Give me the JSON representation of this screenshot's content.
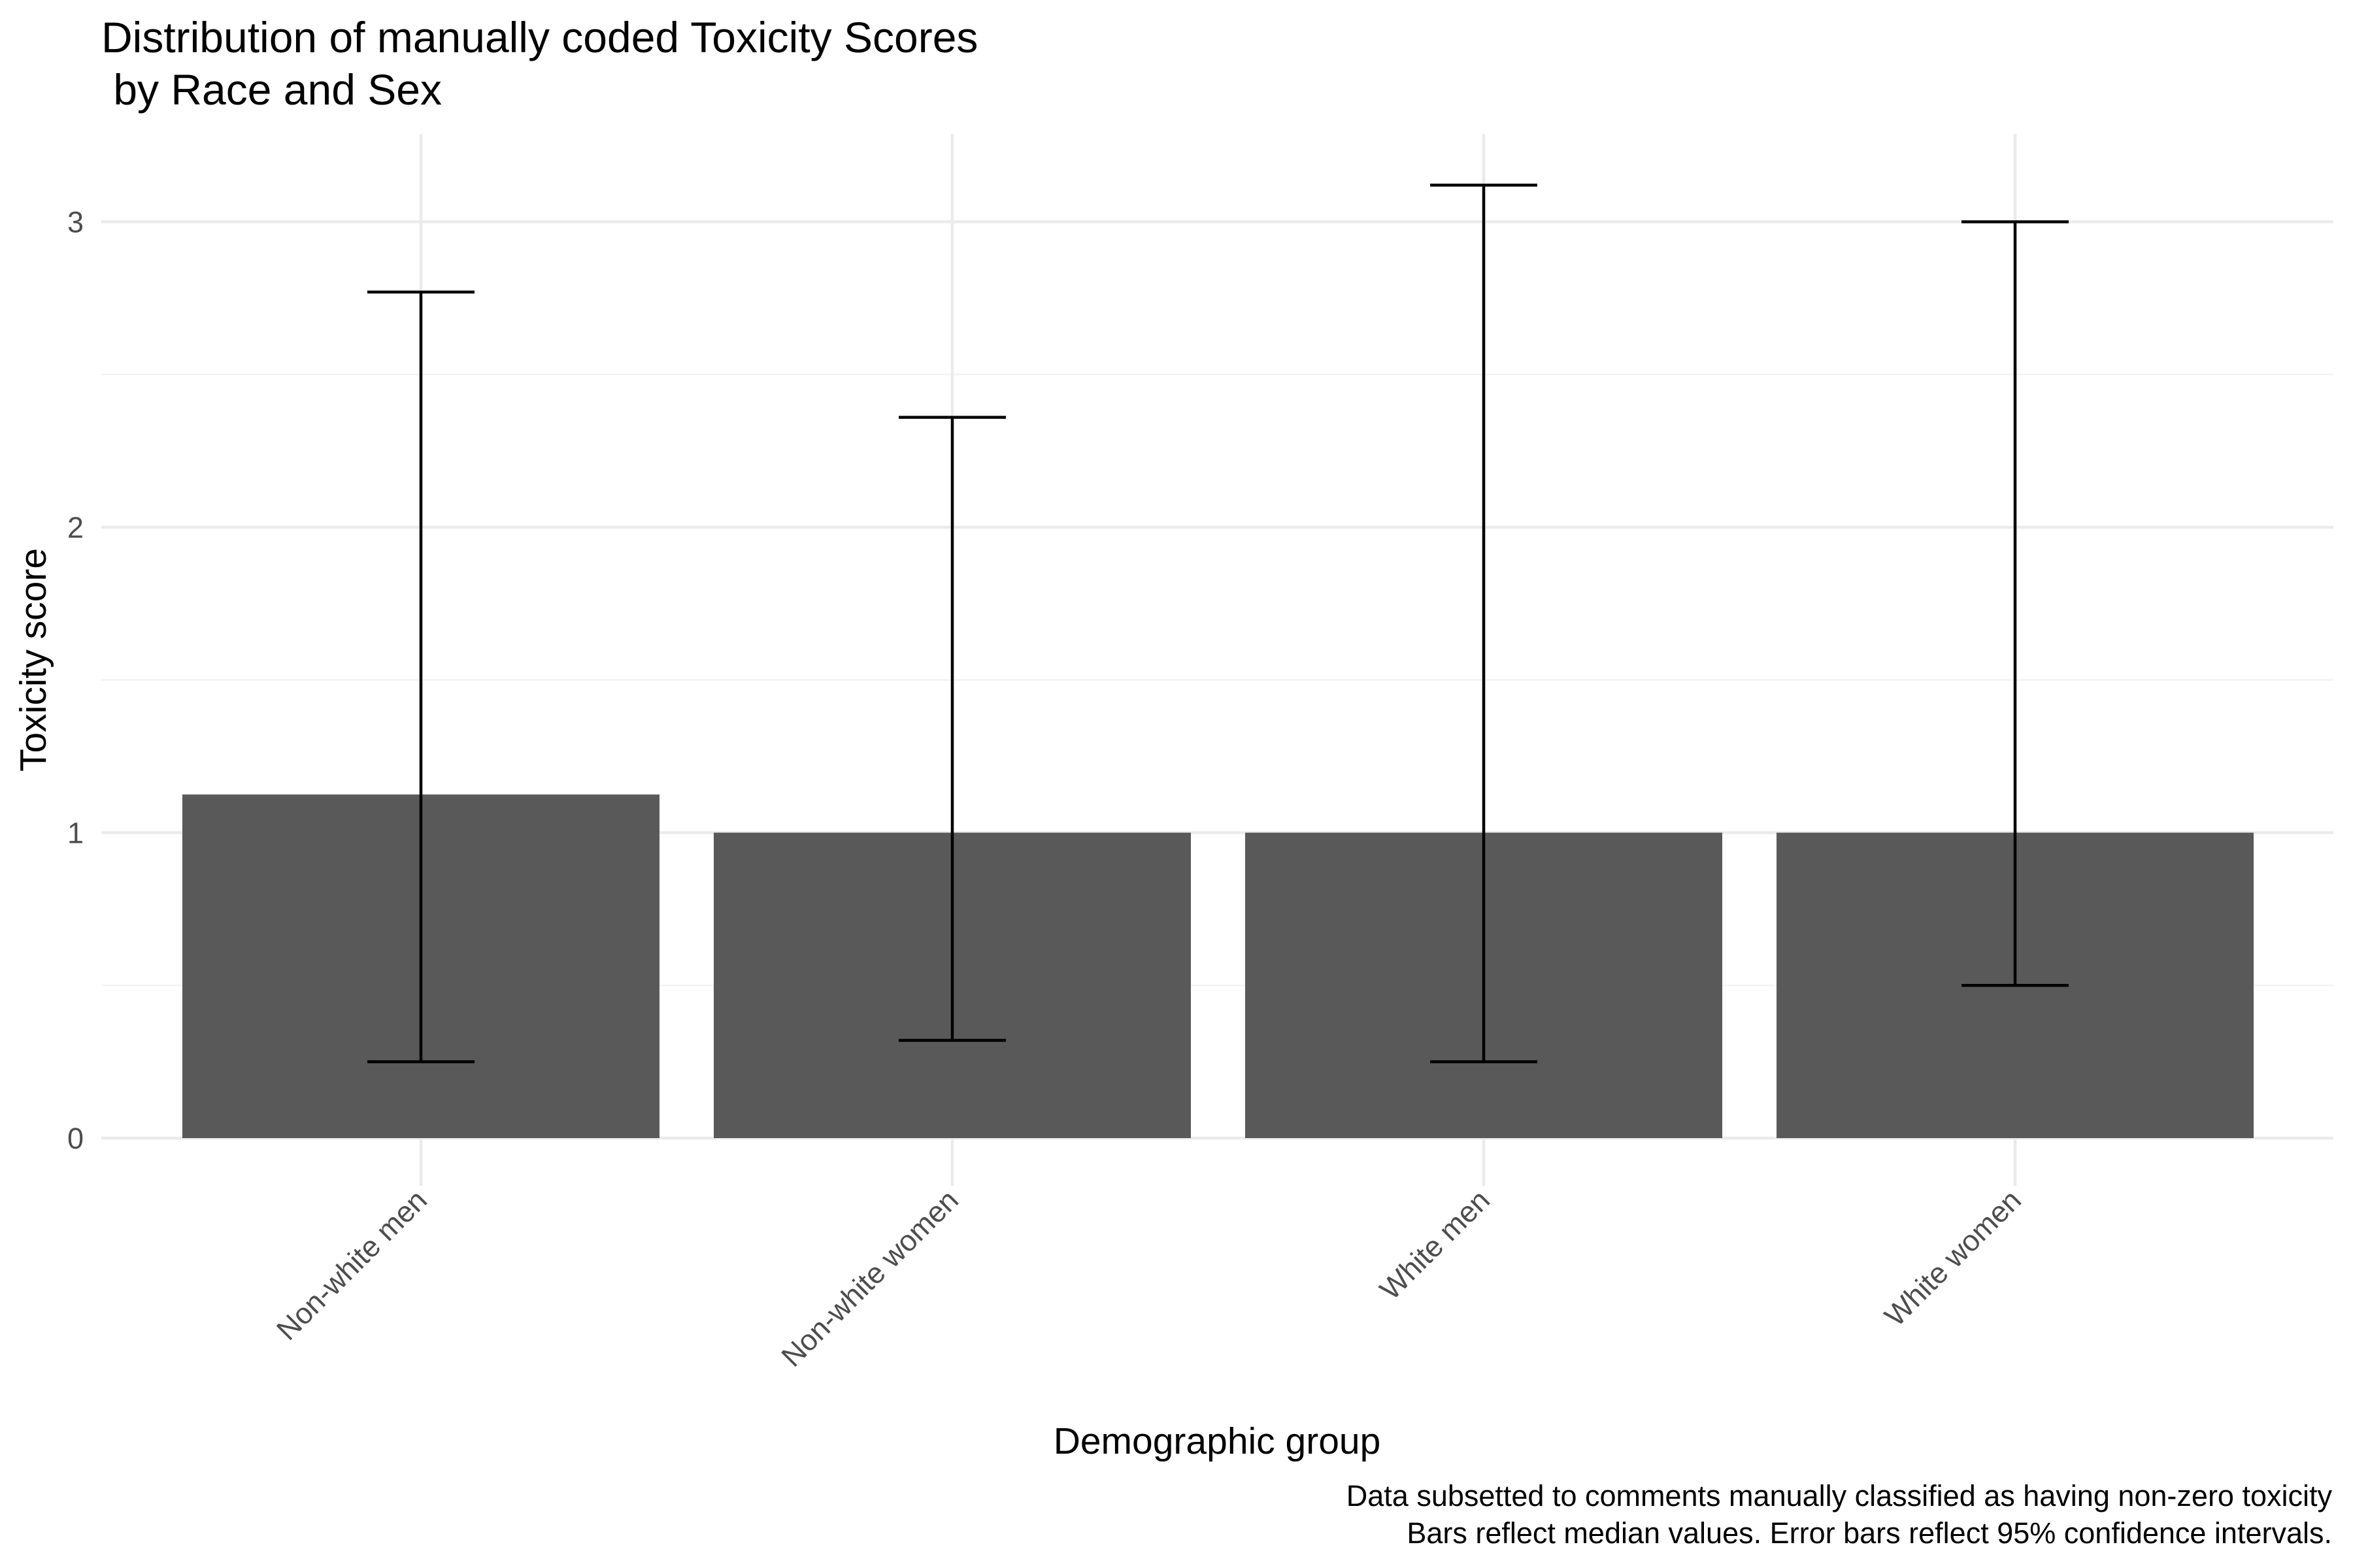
{
  "chart_data": {
    "type": "bar",
    "title_lines": [
      "Distribution of manually coded Toxicity Scores",
      " by Race and Sex"
    ],
    "xlabel": "Demographic group",
    "ylabel": "Toxicity score",
    "caption_lines": [
      "Data subsetted to comments manually classified as having non-zero toxicity",
      "Bars reflect median values. Error bars reflect 95% confidence intervals."
    ],
    "categories": [
      "Non-white men",
      "Non-white women",
      "White men",
      "White women"
    ],
    "values": [
      1.125,
      1.0,
      1.0,
      1.0
    ],
    "error_low": [
      0.25,
      0.32,
      0.25,
      0.5
    ],
    "error_high": [
      2.77,
      2.36,
      3.12,
      3.0
    ],
    "ylim": [
      0,
      3.3
    ],
    "yticks": [
      0,
      1,
      2,
      3
    ],
    "grid": true,
    "colors": {
      "bar": "#595959",
      "errorbar": "#000000",
      "grid_major": "#ebebeb",
      "grid_minor": "#f3f3f3",
      "tick_text": "#4d4d4d"
    }
  }
}
